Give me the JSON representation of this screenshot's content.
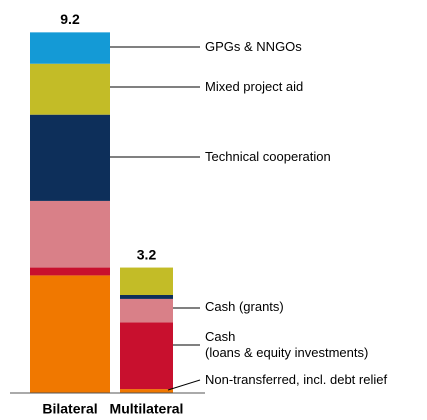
{
  "chart_data": {
    "type": "bar",
    "stacked": true,
    "categories": [
      "Bilateral",
      "Multilateral"
    ],
    "totals": [
      9.2,
      3.2
    ],
    "series": [
      {
        "name": "Non-transferred, incl. debt relief",
        "color": "#f07800",
        "values": [
          3.0,
          0.1
        ]
      },
      {
        "name": "Cash\n(loans & equity investments)",
        "color": "#c8102e",
        "values": [
          0.2,
          1.7
        ]
      },
      {
        "name": "Cash (grants)",
        "color": "#d98088",
        "values": [
          1.7,
          0.6
        ]
      },
      {
        "name": "Technical cooperation",
        "color": "#0d2f5a",
        "values": [
          2.2,
          0.1
        ]
      },
      {
        "name": "Mixed project aid",
        "color": "#c3bc27",
        "values": [
          1.3,
          0.7
        ]
      },
      {
        "name": "GPGs & NNGOs",
        "color": "#149ad6",
        "values": [
          0.8,
          0
        ]
      }
    ]
  }
}
